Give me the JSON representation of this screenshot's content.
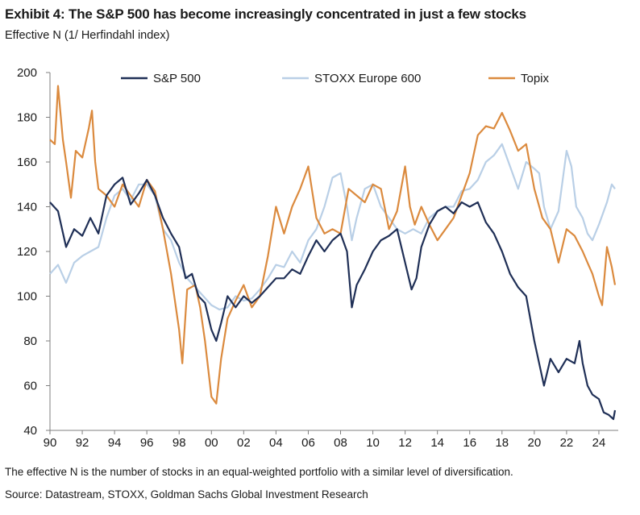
{
  "header": {
    "title": "Exhibit 4: The S&P 500 has become increasingly concentrated in just a few stocks",
    "subtitle": "Effective N (1/ Herfindahl index)"
  },
  "footer": {
    "note": "The effective N is the number of stocks in an equal-weighted portfolio with a similar level of diversification.",
    "source": "Source: Datastream, STOXX, Goldman Sachs Global Investment Research"
  },
  "chart_data": {
    "type": "line",
    "title": "Exhibit 4: The S&P 500 has become increasingly concentrated in just a few stocks",
    "ylabel": "Effective N (1/ Herfindahl index)",
    "xlim": [
      1990,
      2025.2
    ],
    "ylim": [
      40,
      200
    ],
    "x_ticks": [
      1990,
      1992,
      1994,
      1996,
      1998,
      2000,
      2002,
      2004,
      2006,
      2008,
      2010,
      2012,
      2014,
      2016,
      2018,
      2020,
      2022,
      2024
    ],
    "x_tick_labels": [
      "90",
      "92",
      "94",
      "96",
      "98",
      "00",
      "02",
      "04",
      "06",
      "08",
      "10",
      "12",
      "14",
      "16",
      "18",
      "20",
      "22",
      "24"
    ],
    "y_ticks": [
      40,
      60,
      80,
      100,
      120,
      140,
      160,
      180,
      200
    ],
    "grid": false,
    "legend_position": "top",
    "series": [
      {
        "name": "S&P 500",
        "color": "#1f2f56",
        "points": [
          [
            1990,
            142
          ],
          [
            1990.5,
            138
          ],
          [
            1991,
            122
          ],
          [
            1991.5,
            130
          ],
          [
            1992,
            127
          ],
          [
            1992.5,
            135
          ],
          [
            1993,
            128
          ],
          [
            1993.5,
            145
          ],
          [
            1994,
            150
          ],
          [
            1994.5,
            153
          ],
          [
            1995,
            141
          ],
          [
            1995.5,
            146
          ],
          [
            1996,
            152
          ],
          [
            1996.5,
            145
          ],
          [
            1997,
            135
          ],
          [
            1997.5,
            128
          ],
          [
            1998,
            122
          ],
          [
            1998.4,
            108
          ],
          [
            1998.8,
            110
          ],
          [
            1999.2,
            100
          ],
          [
            1999.6,
            97
          ],
          [
            2000,
            85
          ],
          [
            2000.3,
            80
          ],
          [
            2000.6,
            88
          ],
          [
            2001,
            100
          ],
          [
            2001.5,
            95
          ],
          [
            2002,
            100
          ],
          [
            2002.5,
            97
          ],
          [
            2003,
            100
          ],
          [
            2003.5,
            104
          ],
          [
            2004,
            108
          ],
          [
            2004.5,
            108
          ],
          [
            2005,
            112
          ],
          [
            2005.5,
            110
          ],
          [
            2006,
            118
          ],
          [
            2006.5,
            125
          ],
          [
            2007,
            120
          ],
          [
            2007.5,
            125
          ],
          [
            2008,
            128
          ],
          [
            2008.4,
            120
          ],
          [
            2008.7,
            95
          ],
          [
            2009,
            105
          ],
          [
            2009.5,
            112
          ],
          [
            2010,
            120
          ],
          [
            2010.5,
            125
          ],
          [
            2011,
            127
          ],
          [
            2011.5,
            130
          ],
          [
            2012,
            115
          ],
          [
            2012.4,
            103
          ],
          [
            2012.7,
            108
          ],
          [
            2013,
            122
          ],
          [
            2013.5,
            132
          ],
          [
            2014,
            138
          ],
          [
            2014.5,
            140
          ],
          [
            2015,
            137
          ],
          [
            2015.5,
            142
          ],
          [
            2016,
            140
          ],
          [
            2016.5,
            142
          ],
          [
            2017,
            133
          ],
          [
            2017.5,
            128
          ],
          [
            2018,
            120
          ],
          [
            2018.5,
            110
          ],
          [
            2019,
            104
          ],
          [
            2019.5,
            100
          ],
          [
            2020,
            80
          ],
          [
            2020.3,
            70
          ],
          [
            2020.6,
            60
          ],
          [
            2021,
            72
          ],
          [
            2021.5,
            66
          ],
          [
            2022,
            72
          ],
          [
            2022.5,
            70
          ],
          [
            2022.8,
            80
          ],
          [
            2023,
            70
          ],
          [
            2023.3,
            60
          ],
          [
            2023.6,
            56
          ],
          [
            2024,
            54
          ],
          [
            2024.3,
            48
          ],
          [
            2024.6,
            47
          ],
          [
            2024.9,
            45
          ],
          [
            2025,
            49
          ]
        ]
      },
      {
        "name": "STOXX Europe 600",
        "color": "#b9cfe6",
        "points": [
          [
            1990,
            110
          ],
          [
            1990.5,
            114
          ],
          [
            1991,
            106
          ],
          [
            1991.5,
            115
          ],
          [
            1992,
            118
          ],
          [
            1992.5,
            120
          ],
          [
            1993,
            122
          ],
          [
            1993.5,
            135
          ],
          [
            1994,
            145
          ],
          [
            1994.5,
            148
          ],
          [
            1995,
            143
          ],
          [
            1995.5,
            150
          ],
          [
            1996,
            150
          ],
          [
            1996.5,
            145
          ],
          [
            1997,
            130
          ],
          [
            1997.5,
            125
          ],
          [
            1998,
            115
          ],
          [
            1998.5,
            108
          ],
          [
            1999,
            104
          ],
          [
            1999.5,
            100
          ],
          [
            2000,
            96
          ],
          [
            2000.5,
            94
          ],
          [
            2001,
            95
          ],
          [
            2001.5,
            100
          ],
          [
            2002,
            98
          ],
          [
            2002.5,
            99
          ],
          [
            2003,
            103
          ],
          [
            2003.5,
            108
          ],
          [
            2004,
            114
          ],
          [
            2004.5,
            113
          ],
          [
            2005,
            120
          ],
          [
            2005.5,
            115
          ],
          [
            2006,
            125
          ],
          [
            2006.5,
            130
          ],
          [
            2007,
            140
          ],
          [
            2007.5,
            153
          ],
          [
            2008,
            155
          ],
          [
            2008.4,
            140
          ],
          [
            2008.7,
            125
          ],
          [
            2009,
            135
          ],
          [
            2009.5,
            148
          ],
          [
            2010,
            150
          ],
          [
            2010.5,
            140
          ],
          [
            2011,
            135
          ],
          [
            2011.5,
            130
          ],
          [
            2012,
            128
          ],
          [
            2012.5,
            130
          ],
          [
            2013,
            128
          ],
          [
            2013.5,
            135
          ],
          [
            2014,
            138
          ],
          [
            2014.5,
            140
          ],
          [
            2015,
            140
          ],
          [
            2015.5,
            147
          ],
          [
            2016,
            148
          ],
          [
            2016.5,
            152
          ],
          [
            2017,
            160
          ],
          [
            2017.5,
            163
          ],
          [
            2018,
            168
          ],
          [
            2018.5,
            158
          ],
          [
            2019,
            148
          ],
          [
            2019.5,
            160
          ],
          [
            2020,
            157
          ],
          [
            2020.3,
            155
          ],
          [
            2020.6,
            140
          ],
          [
            2021,
            130
          ],
          [
            2021.5,
            138
          ],
          [
            2022,
            165
          ],
          [
            2022.3,
            158
          ],
          [
            2022.6,
            140
          ],
          [
            2023,
            135
          ],
          [
            2023.3,
            128
          ],
          [
            2023.6,
            125
          ],
          [
            2024,
            132
          ],
          [
            2024.5,
            142
          ],
          [
            2024.8,
            150
          ],
          [
            2025,
            148
          ]
        ]
      },
      {
        "name": "Topix",
        "color": "#db8a3e",
        "points": [
          [
            1990,
            170
          ],
          [
            1990.3,
            168
          ],
          [
            1990.5,
            194
          ],
          [
            1990.8,
            170
          ],
          [
            1991,
            160
          ],
          [
            1991.3,
            144
          ],
          [
            1991.6,
            165
          ],
          [
            1992,
            162
          ],
          [
            1992.4,
            175
          ],
          [
            1992.6,
            183
          ],
          [
            1992.8,
            160
          ],
          [
            1993,
            148
          ],
          [
            1993.5,
            145
          ],
          [
            1994,
            140
          ],
          [
            1994.5,
            150
          ],
          [
            1995,
            145
          ],
          [
            1995.5,
            140
          ],
          [
            1996,
            152
          ],
          [
            1996.5,
            147
          ],
          [
            1997,
            130
          ],
          [
            1997.5,
            110
          ],
          [
            1998,
            85
          ],
          [
            1998.2,
            70
          ],
          [
            1998.5,
            103
          ],
          [
            1999,
            105
          ],
          [
            1999.3,
            95
          ],
          [
            1999.6,
            80
          ],
          [
            2000,
            55
          ],
          [
            2000.3,
            52
          ],
          [
            2000.6,
            72
          ],
          [
            2001,
            90
          ],
          [
            2001.5,
            98
          ],
          [
            2002,
            105
          ],
          [
            2002.5,
            95
          ],
          [
            2003,
            100
          ],
          [
            2003.5,
            118
          ],
          [
            2004,
            140
          ],
          [
            2004.5,
            128
          ],
          [
            2005,
            140
          ],
          [
            2005.5,
            148
          ],
          [
            2006,
            158
          ],
          [
            2006.5,
            135
          ],
          [
            2007,
            128
          ],
          [
            2007.5,
            130
          ],
          [
            2008,
            128
          ],
          [
            2008.5,
            148
          ],
          [
            2009,
            145
          ],
          [
            2009.5,
            142
          ],
          [
            2010,
            150
          ],
          [
            2010.5,
            148
          ],
          [
            2011,
            130
          ],
          [
            2011.5,
            138
          ],
          [
            2012,
            158
          ],
          [
            2012.3,
            140
          ],
          [
            2012.6,
            132
          ],
          [
            2013,
            140
          ],
          [
            2013.5,
            132
          ],
          [
            2014,
            125
          ],
          [
            2014.5,
            130
          ],
          [
            2015,
            135
          ],
          [
            2015.5,
            145
          ],
          [
            2016,
            155
          ],
          [
            2016.5,
            172
          ],
          [
            2017,
            176
          ],
          [
            2017.5,
            175
          ],
          [
            2018,
            182
          ],
          [
            2018.5,
            174
          ],
          [
            2019,
            165
          ],
          [
            2019.5,
            168
          ],
          [
            2020,
            148
          ],
          [
            2020.5,
            135
          ],
          [
            2021,
            130
          ],
          [
            2021.5,
            115
          ],
          [
            2022,
            130
          ],
          [
            2022.5,
            127
          ],
          [
            2023,
            120
          ],
          [
            2023.3,
            115
          ],
          [
            2023.6,
            110
          ],
          [
            2024,
            100
          ],
          [
            2024.2,
            96
          ],
          [
            2024.5,
            122
          ],
          [
            2024.8,
            113
          ],
          [
            2025,
            105
          ]
        ]
      }
    ]
  }
}
